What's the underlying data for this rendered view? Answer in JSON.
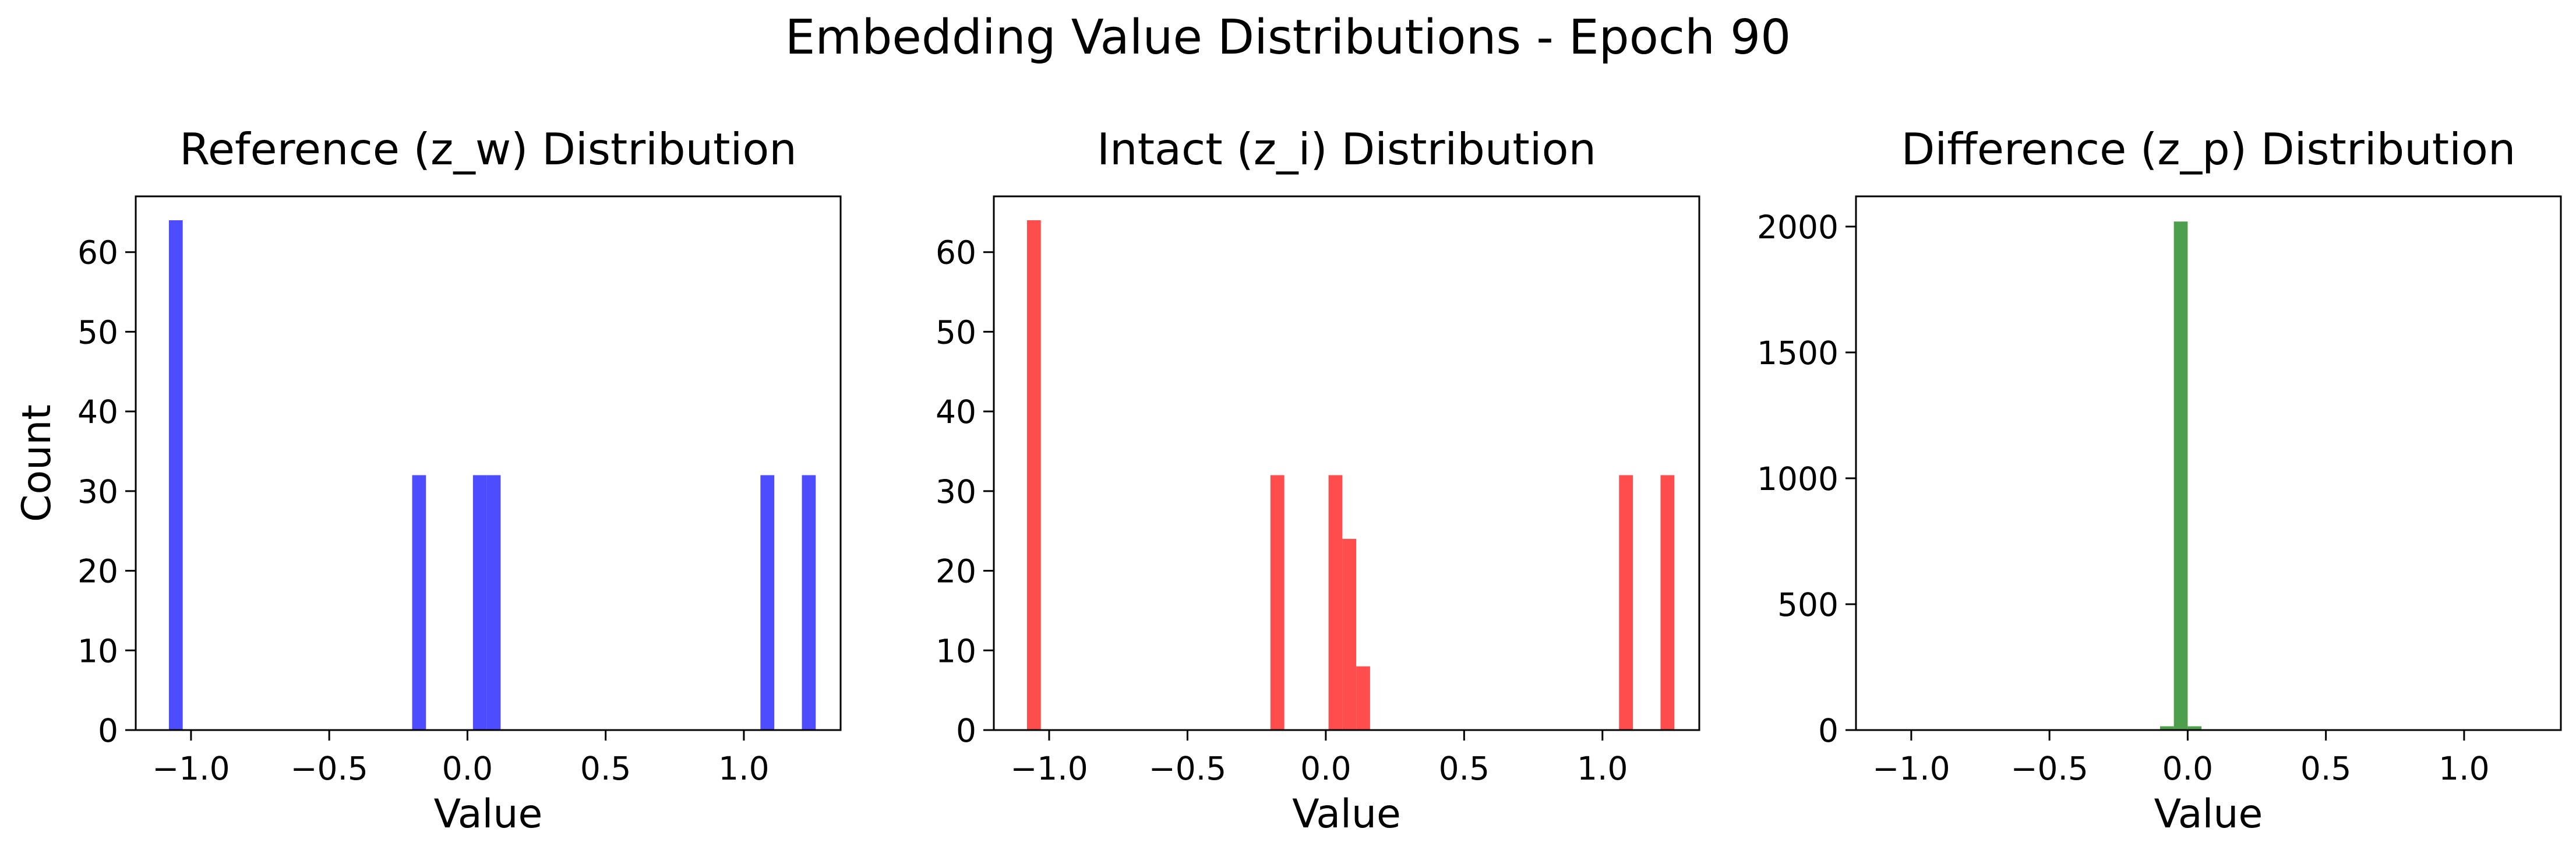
{
  "chart_data": {
    "title": "Embedding Value Distributions - Epoch 90",
    "ylabel": "Count",
    "panels": [
      {
        "type": "bar",
        "title": "Reference (z_w) Distribution",
        "xlabel": "Value",
        "color": "#4d4dff",
        "xlim": [
          -1.2,
          1.35
        ],
        "ylim": [
          0,
          67
        ],
        "xticks": [
          -1.0,
          -0.5,
          0.0,
          0.5,
          1.0
        ],
        "xtick_labels": [
          "−1.0",
          "−0.5",
          "0.0",
          "0.5",
          "1.0"
        ],
        "yticks": [
          0,
          10,
          20,
          30,
          40,
          50,
          60
        ],
        "ytick_labels": [
          "0",
          "10",
          "20",
          "30",
          "40",
          "50",
          "60"
        ],
        "bin_width": 0.05,
        "bins": [
          {
            "x0": -1.08,
            "value": 64
          },
          {
            "x0": -0.2,
            "value": 32
          },
          {
            "x0": 0.02,
            "value": 32
          },
          {
            "x0": 0.07,
            "value": 32
          },
          {
            "x0": 1.06,
            "value": 32
          },
          {
            "x0": 1.21,
            "value": 32
          }
        ]
      },
      {
        "type": "bar",
        "title": "Intact (z_i) Distribution",
        "xlabel": "Value",
        "color": "#ff4d4d",
        "xlim": [
          -1.2,
          1.35
        ],
        "ylim": [
          0,
          67
        ],
        "xticks": [
          -1.0,
          -0.5,
          0.0,
          0.5,
          1.0
        ],
        "xtick_labels": [
          "−1.0",
          "−0.5",
          "0.0",
          "0.5",
          "1.0"
        ],
        "yticks": [
          0,
          10,
          20,
          30,
          40,
          50,
          60
        ],
        "ytick_labels": [
          "0",
          "10",
          "20",
          "30",
          "40",
          "50",
          "60"
        ],
        "bin_width": 0.05,
        "bins": [
          {
            "x0": -1.08,
            "value": 64
          },
          {
            "x0": -0.2,
            "value": 32
          },
          {
            "x0": 0.01,
            "value": 32
          },
          {
            "x0": 0.06,
            "value": 24
          },
          {
            "x0": 0.11,
            "value": 8
          },
          {
            "x0": 1.06,
            "value": 32
          },
          {
            "x0": 1.21,
            "value": 32
          }
        ]
      },
      {
        "type": "bar",
        "title": "Difference (z_p) Distribution",
        "xlabel": "Value",
        "color": "#4d9e4d",
        "xlim": [
          -1.2,
          1.35
        ],
        "ylim": [
          0,
          2120
        ],
        "xticks": [
          -1.0,
          -0.5,
          0.0,
          0.5,
          1.0
        ],
        "xtick_labels": [
          "−1.0",
          "−0.5",
          "0.0",
          "0.5",
          "1.0"
        ],
        "yticks": [
          0,
          500,
          1000,
          1500,
          2000
        ],
        "ytick_labels": [
          "0",
          "500",
          "1000",
          "1500",
          "2000"
        ],
        "bin_width": 0.05,
        "bins": [
          {
            "x0": -0.1,
            "value": 15
          },
          {
            "x0": -0.05,
            "value": 2020
          },
          {
            "x0": 0.0,
            "value": 15
          }
        ]
      }
    ]
  }
}
